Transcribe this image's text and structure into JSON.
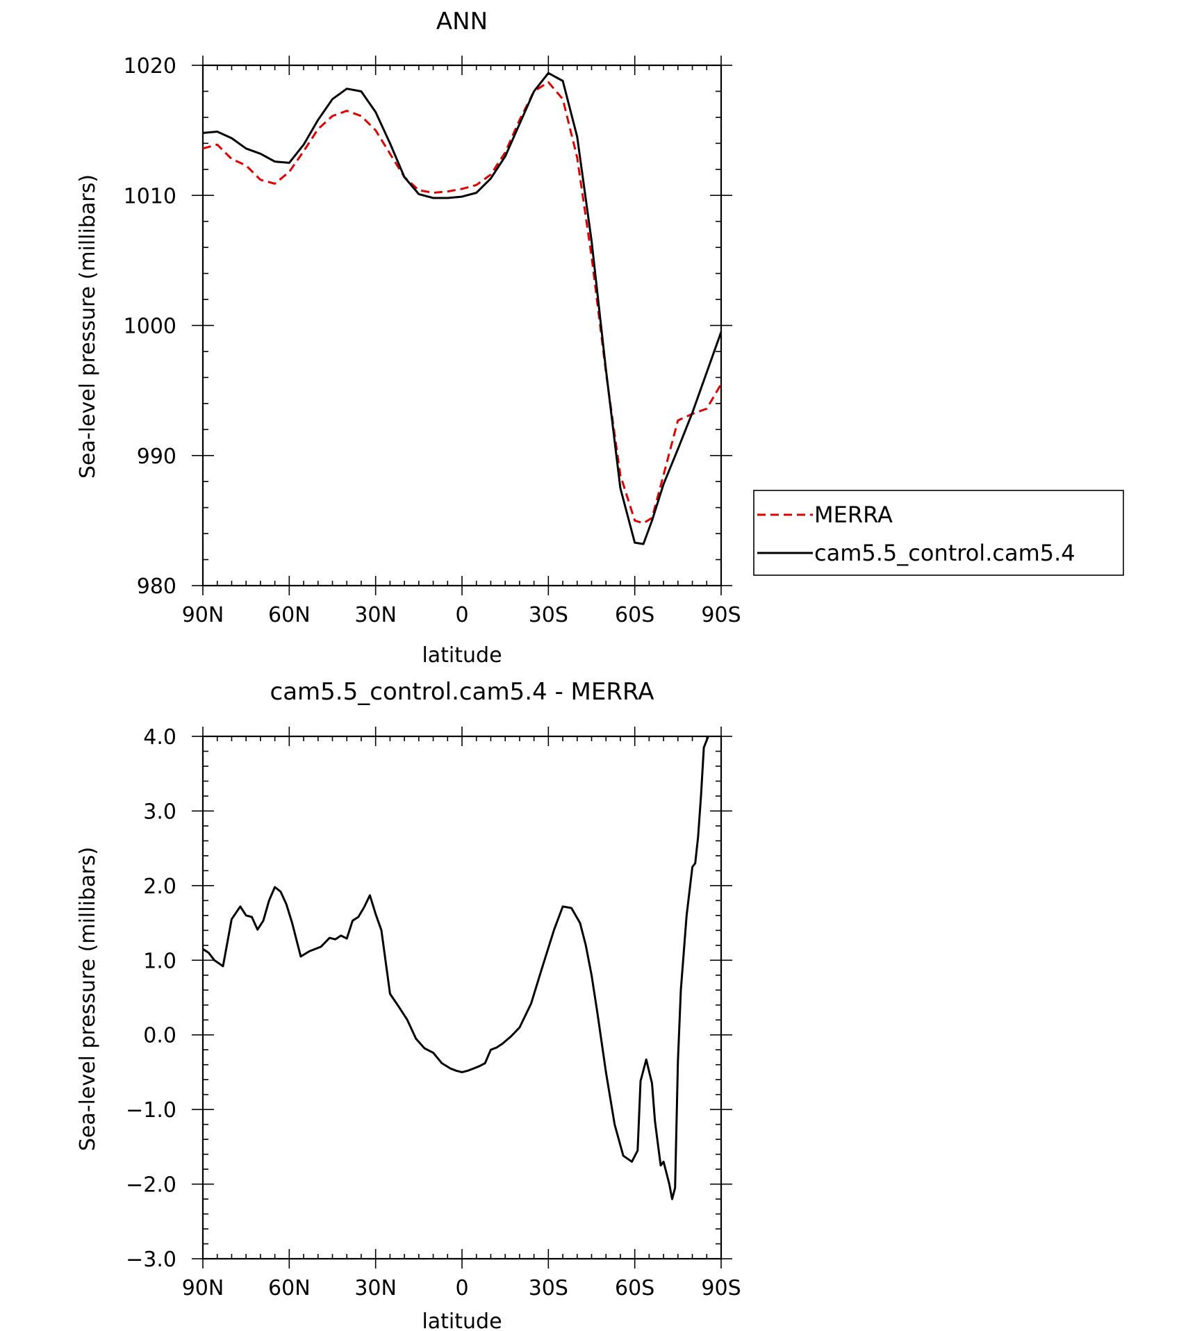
{
  "chart_data": [
    {
      "type": "line",
      "title": "ANN",
      "xlabel": "latitude",
      "ylabel": "Sea-level pressure (millibars)",
      "xlim": [
        -90,
        90
      ],
      "ylim": [
        980,
        1020
      ],
      "x_ticks": [
        -90,
        -60,
        -30,
        0,
        30,
        60,
        90
      ],
      "x_tick_labels": [
        "90N",
        "60N",
        "30N",
        "0",
        "30S",
        "60S",
        "90S"
      ],
      "y_ticks": [
        980,
        990,
        1000,
        1010,
        1020
      ],
      "y_tick_labels": [
        "980",
        "990",
        "1000",
        "1010",
        "1020"
      ],
      "grid": false,
      "legend_position": "right",
      "series": [
        {
          "name": "MERRA",
          "color": "#e00000",
          "dash": "dashed",
          "x": [
            -90,
            -85,
            -80,
            -75,
            -70,
            -65,
            -60,
            -55,
            -50,
            -45,
            -40,
            -35,
            -30,
            -25,
            -20,
            -15,
            -10,
            -5,
            0,
            5,
            10,
            15,
            20,
            25,
            30,
            35,
            40,
            45,
            50,
            55,
            60,
            63,
            66,
            70,
            75,
            80,
            85,
            90
          ],
          "values": [
            1013.6,
            1013.9,
            1012.8,
            1012.3,
            1011.2,
            1010.9,
            1011.8,
            1013.4,
            1015.1,
            1016.1,
            1016.5,
            1016.1,
            1015.0,
            1013.2,
            1011.4,
            1010.4,
            1010.2,
            1010.3,
            1010.5,
            1010.8,
            1011.6,
            1013.3,
            1015.8,
            1018.0,
            1018.7,
            1017.4,
            1012.9,
            1005.3,
            996.4,
            988.5,
            985.0,
            984.8,
            985.2,
            988.5,
            992.7,
            993.2,
            993.6,
            995.5
          ]
        },
        {
          "name": "cam5.5_control.cam5.4",
          "color": "#000000",
          "dash": "solid",
          "x": [
            -90,
            -85,
            -80,
            -75,
            -70,
            -65,
            -60,
            -55,
            -50,
            -45,
            -40,
            -35,
            -30,
            -25,
            -20,
            -15,
            -10,
            -5,
            0,
            5,
            10,
            15,
            20,
            25,
            30,
            35,
            40,
            45,
            50,
            55,
            60,
            63,
            66,
            70,
            75,
            80,
            85,
            90
          ],
          "values": [
            1014.8,
            1014.9,
            1014.4,
            1013.6,
            1013.2,
            1012.6,
            1012.5,
            1013.9,
            1015.8,
            1017.4,
            1018.2,
            1018.0,
            1016.4,
            1014.0,
            1011.4,
            1010.1,
            1009.8,
            1009.8,
            1009.9,
            1010.2,
            1011.3,
            1013.0,
            1015.5,
            1018.0,
            1019.4,
            1018.8,
            1014.5,
            1006.5,
            996.6,
            987.5,
            983.3,
            983.2,
            985.0,
            987.8,
            990.5,
            993.3,
            996.4,
            999.5
          ]
        }
      ]
    },
    {
      "type": "line",
      "title": "cam5.5_control.cam5.4 - MERRA",
      "xlabel": "latitude",
      "ylabel": "Sea-level pressure (millibars)",
      "xlim": [
        -90,
        90
      ],
      "ylim": [
        -3.0,
        4.0
      ],
      "x_ticks": [
        -90,
        -60,
        -30,
        0,
        30,
        60,
        90
      ],
      "x_tick_labels": [
        "90N",
        "60N",
        "30N",
        "0",
        "30S",
        "60S",
        "90S"
      ],
      "y_ticks": [
        -3.0,
        -2.0,
        -1.0,
        0.0,
        1.0,
        2.0,
        3.0,
        4.0
      ],
      "y_tick_labels": [
        "−3.0",
        "−2.0",
        "−1.0",
        "0.0",
        "1.0",
        "2.0",
        "3.0",
        "4.0"
      ],
      "grid": false,
      "series": [
        {
          "color": "#000000",
          "dash": "solid",
          "x": [
            -90,
            -88,
            -86,
            -83,
            -80,
            -77,
            -75,
            -73,
            -71,
            -69,
            -67,
            -65,
            -63,
            -61,
            -59,
            -56,
            -53,
            -49,
            -46,
            -44,
            -42,
            -40,
            -38,
            -36,
            -34,
            -32,
            -30,
            -28,
            -25,
            -22,
            -19,
            -16,
            -13,
            -10,
            -7,
            -4,
            -2,
            0,
            2,
            4,
            6,
            8,
            10,
            12,
            14,
            17,
            20,
            24,
            28,
            32,
            35,
            38,
            41,
            43,
            45,
            47,
            50,
            53,
            56,
            59,
            61,
            62,
            64,
            66,
            67,
            68,
            69,
            70,
            71,
            72,
            73,
            74,
            75,
            76,
            78,
            80,
            81,
            82,
            83,
            84,
            85,
            86,
            88,
            89,
            90
          ],
          "values": [
            1.15,
            1.1,
            1.0,
            0.92,
            1.55,
            1.72,
            1.6,
            1.58,
            1.41,
            1.53,
            1.8,
            1.98,
            1.92,
            1.75,
            1.5,
            1.05,
            1.12,
            1.18,
            1.3,
            1.28,
            1.33,
            1.29,
            1.53,
            1.58,
            1.71,
            1.87,
            1.62,
            1.4,
            0.55,
            0.38,
            0.2,
            -0.05,
            -0.18,
            -0.24,
            -0.38,
            -0.45,
            -0.48,
            -0.5,
            -0.48,
            -0.45,
            -0.42,
            -0.38,
            -0.2,
            -0.17,
            -0.12,
            -0.02,
            0.1,
            0.42,
            0.92,
            1.41,
            1.72,
            1.7,
            1.5,
            1.2,
            0.8,
            0.3,
            -0.5,
            -1.2,
            -1.62,
            -1.7,
            -1.55,
            -0.62,
            -0.33,
            -0.65,
            -1.15,
            -1.45,
            -1.75,
            -1.7,
            -1.85,
            -2.0,
            -2.2,
            -2.05,
            -0.35,
            0.6,
            1.6,
            2.25,
            2.3,
            2.65,
            3.2,
            3.85,
            3.95,
            4.05,
            4.2,
            4.3,
            4.4
          ]
        }
      ]
    }
  ]
}
